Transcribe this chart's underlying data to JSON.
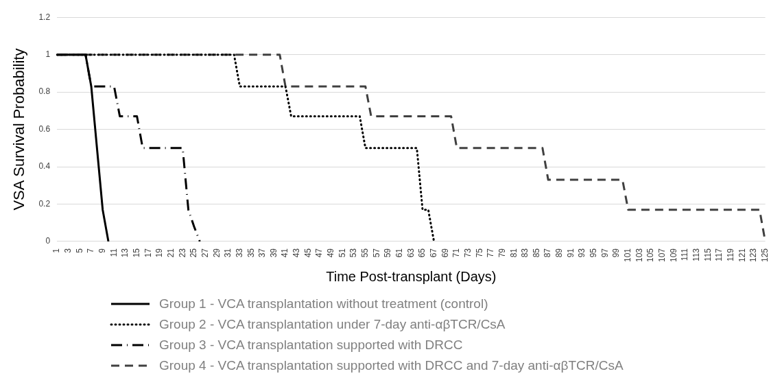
{
  "chart_data": {
    "type": "line",
    "xlabel": "Time Post-transplant (Days)",
    "ylabel": "VSA Survival Probability",
    "categories": [
      "1",
      null,
      "3",
      null,
      "5",
      null,
      "7",
      null,
      "9",
      null,
      "11",
      null,
      "13",
      null,
      "15",
      null,
      "17",
      null,
      "19",
      null,
      "21",
      null,
      "23",
      null,
      "25",
      null,
      "27",
      null,
      "29",
      null,
      "31",
      null,
      "33",
      null,
      "35",
      null,
      "37",
      null,
      "39",
      null,
      "41",
      null,
      "43",
      null,
      "45",
      null,
      "47",
      null,
      "49",
      null,
      "51",
      null,
      "53",
      null,
      "55",
      null,
      "57",
      null,
      "59",
      null,
      "61",
      null,
      "63",
      null,
      "65",
      null,
      "67",
      null,
      "69",
      null,
      "71",
      null,
      "73",
      null,
      "75",
      null,
      "77",
      null,
      "79",
      null,
      "81",
      null,
      "83",
      null,
      "85",
      null,
      "87",
      null,
      "89",
      null,
      "91",
      null,
      "93",
      null,
      "95",
      null,
      "97",
      null,
      "99",
      null,
      "101",
      null,
      "103",
      null,
      "105",
      null,
      "107",
      null,
      "109",
      null,
      "111",
      null,
      "113",
      null,
      "115",
      null,
      "117",
      null,
      "119",
      null,
      "121",
      null,
      "123",
      null,
      "125"
    ],
    "ylim": [
      0,
      1.2
    ],
    "yticks": [
      0,
      0.2,
      0.4,
      0.6,
      0.8,
      1,
      1.2
    ],
    "grid": "y",
    "legend": "bottom",
    "marker": "none",
    "series": [
      {
        "name": "Group 1 - VCA transplantation without treatment (control)",
        "color": "#000000",
        "line_style": "solid",
        "values": [
          1,
          1,
          1,
          1,
          1,
          1,
          0.83,
          0.5,
          0.17,
          0,
          null,
          null,
          null,
          null,
          null,
          null,
          null,
          null,
          null,
          null,
          null,
          null,
          null,
          null,
          null,
          null,
          null,
          null,
          null,
          null,
          null,
          null,
          null,
          null,
          null,
          null,
          null,
          null,
          null,
          null,
          null,
          null,
          null,
          null,
          null,
          null,
          null,
          null,
          null,
          null,
          null,
          null,
          null,
          null,
          null,
          null,
          null,
          null,
          null,
          null,
          null,
          null,
          null,
          null,
          null,
          null,
          null,
          null,
          null,
          null,
          null,
          null,
          null,
          null,
          null,
          null,
          null,
          null,
          null,
          null,
          null,
          null,
          null,
          null,
          null,
          null,
          null,
          null,
          null,
          null,
          null,
          null,
          null,
          null,
          null,
          null,
          null,
          null,
          null,
          null,
          null,
          null,
          null,
          null,
          null,
          null,
          null,
          null,
          null,
          null,
          null,
          null,
          null,
          null,
          null,
          null,
          null,
          null,
          null,
          null,
          null,
          null,
          null,
          null,
          null
        ]
      },
      {
        "name": "Group 2 - VCA transplantation under 7-day anti-αβTCR/CsA",
        "color": "#000000",
        "line_style": "dotted",
        "values": [
          1,
          1,
          1,
          1,
          1,
          1,
          1,
          1,
          1,
          1,
          1,
          1,
          1,
          1,
          1,
          1,
          1,
          1,
          1,
          1,
          1,
          1,
          1,
          1,
          1,
          1,
          1,
          1,
          1,
          1,
          1,
          1,
          0.83,
          0.83,
          0.83,
          0.83,
          0.83,
          0.83,
          0.83,
          0.83,
          0.83,
          0.67,
          0.67,
          0.67,
          0.67,
          0.67,
          0.67,
          0.67,
          0.67,
          0.67,
          0.67,
          0.67,
          0.67,
          0.67,
          0.5,
          0.5,
          0.5,
          0.5,
          0.5,
          0.5,
          0.5,
          0.5,
          0.5,
          0.5,
          0.17,
          0.17,
          0,
          null,
          null,
          null,
          null,
          null,
          null,
          null,
          null,
          null,
          null,
          null,
          null,
          null,
          null,
          null,
          null,
          null,
          null,
          null,
          null,
          null,
          null,
          null,
          null,
          null,
          null,
          null,
          null,
          null,
          null,
          null,
          null,
          null,
          null,
          null,
          null,
          null,
          null,
          null,
          null,
          null,
          null,
          null,
          null,
          null,
          null,
          null,
          null,
          null,
          null,
          null,
          null,
          null,
          null,
          null,
          null,
          null,
          null
        ]
      },
      {
        "name": "Group 3 - VCA transplantation supported with DRCC",
        "color": "#000000",
        "line_style": "dashdot",
        "values": [
          1,
          1,
          1,
          1,
          1,
          1,
          0.83,
          0.83,
          0.83,
          0.83,
          0.83,
          0.67,
          0.67,
          0.67,
          0.67,
          0.5,
          0.5,
          0.5,
          0.5,
          0.5,
          0.5,
          0.5,
          0.5,
          0.17,
          0.08,
          0,
          null,
          null,
          null,
          null,
          null,
          null,
          null,
          null,
          null,
          null,
          null,
          null,
          null,
          null,
          null,
          null,
          null,
          null,
          null,
          null,
          null,
          null,
          null,
          null,
          null,
          null,
          null,
          null,
          null,
          null,
          null,
          null,
          null,
          null,
          null,
          null,
          null,
          null,
          null,
          null,
          null,
          null,
          null,
          null,
          null,
          null,
          null,
          null,
          null,
          null,
          null,
          null,
          null,
          null,
          null,
          null,
          null,
          null,
          null,
          null,
          null,
          null,
          null,
          null,
          null,
          null,
          null,
          null,
          null,
          null,
          null,
          null,
          null,
          null,
          null,
          null,
          null,
          null,
          null,
          null,
          null,
          null,
          null,
          null,
          null,
          null,
          null,
          null,
          null,
          null,
          null,
          null,
          null,
          null,
          null,
          null,
          null,
          null,
          null
        ]
      },
      {
        "name": "Group 4 - VCA transplantation supported with DRCC and 7-day anti-αβTCR/CsA",
        "color": "#404040",
        "line_style": "dashed",
        "values": [
          1,
          1,
          1,
          1,
          1,
          1,
          1,
          1,
          1,
          1,
          1,
          1,
          1,
          1,
          1,
          1,
          1,
          1,
          1,
          1,
          1,
          1,
          1,
          1,
          1,
          1,
          1,
          1,
          1,
          1,
          1,
          1,
          1,
          1,
          1,
          1,
          1,
          1,
          1,
          1,
          0.83,
          0.83,
          0.83,
          0.83,
          0.83,
          0.83,
          0.83,
          0.83,
          0.83,
          0.83,
          0.83,
          0.83,
          0.83,
          0.83,
          0.83,
          0.67,
          0.67,
          0.67,
          0.67,
          0.67,
          0.67,
          0.67,
          0.67,
          0.67,
          0.67,
          0.67,
          0.67,
          0.67,
          0.67,
          0.67,
          0.5,
          0.5,
          0.5,
          0.5,
          0.5,
          0.5,
          0.5,
          0.5,
          0.5,
          0.5,
          0.5,
          0.5,
          0.5,
          0.5,
          0.5,
          0.5,
          0.33,
          0.33,
          0.33,
          0.33,
          0.33,
          0.33,
          0.33,
          0.33,
          0.33,
          0.33,
          0.33,
          0.33,
          0.33,
          0.33,
          0.17,
          0.17,
          0.17,
          0.17,
          0.17,
          0.17,
          0.17,
          0.17,
          0.17,
          0.17,
          0.17,
          0.17,
          0.17,
          0.17,
          0.17,
          0.17,
          0.17,
          0.17,
          0.17,
          0.17,
          0.17,
          0.17,
          0.17,
          0.17,
          0
        ]
      }
    ]
  }
}
